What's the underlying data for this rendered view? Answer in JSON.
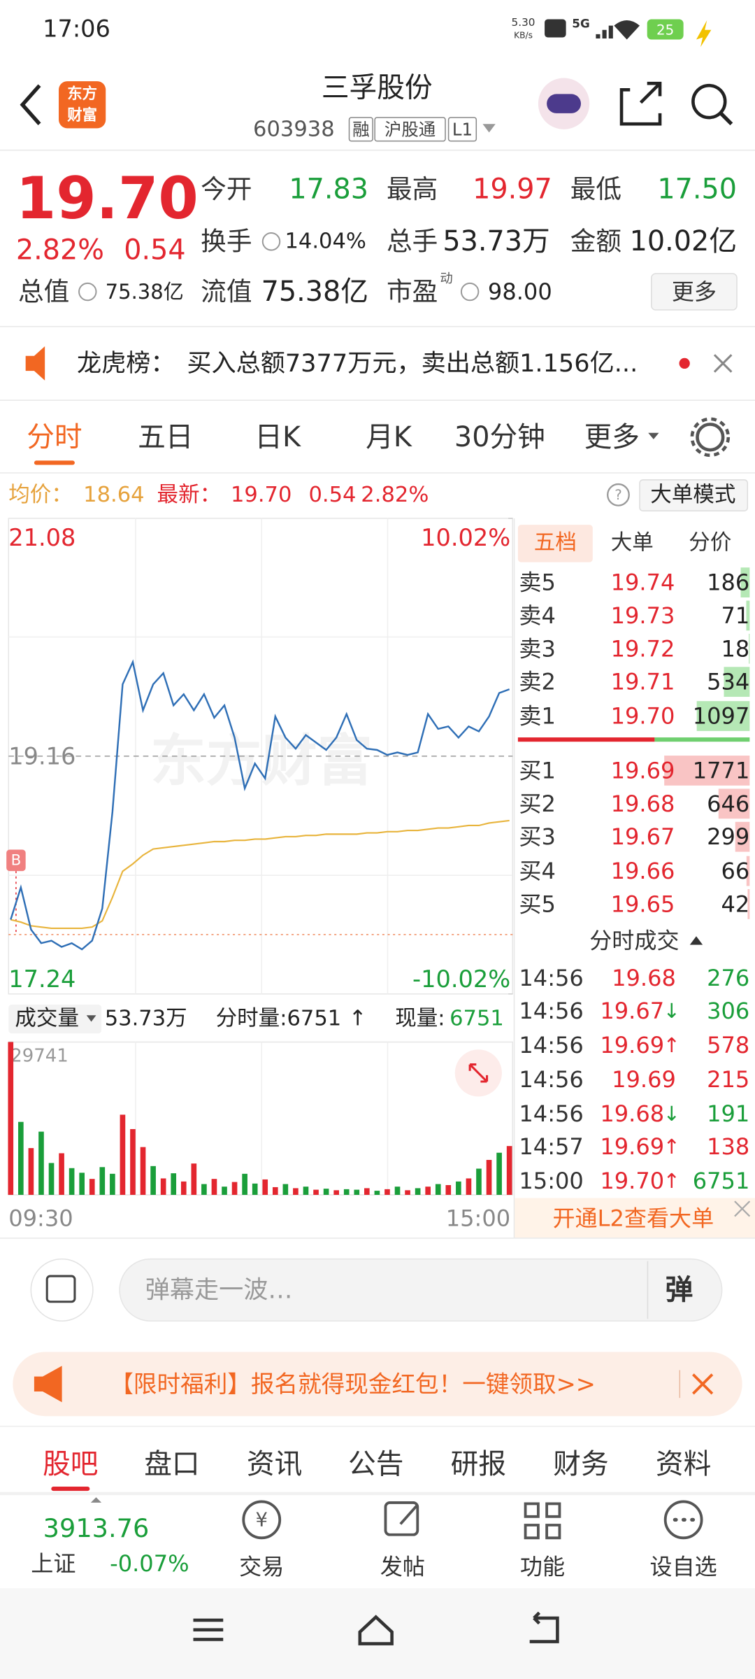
{
  "status_bar": {
    "time": "17:06",
    "net_speed": "5.30",
    "net_unit": "KB/s",
    "signal": "5G",
    "battery": "25"
  },
  "header": {
    "logo": [
      "东方",
      "财富"
    ],
    "title": "三孚股份",
    "code": "603938",
    "tags": [
      "融",
      "沪股通",
      "L1"
    ]
  },
  "quote": {
    "price": "19.70",
    "change_pct": "2.82%",
    "change": "0.54",
    "stats": [
      {
        "label": "今开",
        "value": "17.83",
        "color": "green"
      },
      {
        "label": "最高",
        "value": "19.97",
        "color": "red"
      },
      {
        "label": "最低",
        "value": "17.50",
        "color": "green"
      },
      {
        "label": "换手",
        "value": "14.04%"
      },
      {
        "label": "总手",
        "value": "53.73万"
      },
      {
        "label": "金额",
        "value": "10.02亿"
      },
      {
        "label": "总值",
        "value": "75.38亿"
      },
      {
        "label": "流值",
        "value": "75.38亿"
      },
      {
        "label": "市盈",
        "sup": "动",
        "value": "98.00"
      }
    ],
    "more": "更多"
  },
  "notice": {
    "label": "龙虎榜：",
    "text": "买入总额7377万元，卖出总额1.156亿..."
  },
  "tabs": {
    "items": [
      "分时",
      "五日",
      "日K",
      "月K",
      "30分钟",
      "更多"
    ],
    "active": 0
  },
  "summary": {
    "avg_label": "均价：",
    "avg": "18.64",
    "last_label": "最新：",
    "last": "19.70",
    "change": "0.54",
    "change_pct": "2.82%",
    "mode_button": "大单模式"
  },
  "price_chart": {
    "watermark": "东方财富",
    "buy_marker": "B",
    "ylim": [
      17.24,
      21.08
    ],
    "yticks": [
      21.08,
      19.16,
      17.24
    ],
    "y2lim": [
      -10.02,
      10.02
    ],
    "y2ticks": [
      {
        "value": 10.02,
        "label": "10.02%"
      },
      {
        "value": -10.02,
        "label": "-10.02%"
      }
    ],
    "price_color": "#2f6fb6",
    "avg_color": "#e8b43c",
    "price": [
      17.84,
      18.1,
      17.76,
      17.65,
      17.67,
      17.62,
      17.65,
      17.6,
      17.67,
      17.93,
      18.71,
      19.74,
      19.92,
      19.53,
      19.74,
      19.83,
      19.57,
      19.66,
      19.53,
      19.66,
      19.47,
      19.57,
      19.31,
      18.9,
      19.1,
      18.98,
      19.48,
      19.31,
      19.22,
      19.33,
      19.27,
      19.21,
      19.31,
      19.5,
      19.29,
      19.22,
      19.21,
      19.17,
      19.19,
      19.17,
      19.19,
      19.5,
      19.38,
      19.4,
      19.31,
      19.4,
      19.36,
      19.48,
      19.67,
      19.7
    ],
    "avg": [
      17.84,
      17.82,
      17.79,
      17.78,
      17.77,
      17.77,
      17.77,
      17.77,
      17.78,
      17.83,
      18.02,
      18.23,
      18.29,
      18.36,
      18.41,
      18.42,
      18.43,
      18.44,
      18.45,
      18.46,
      18.47,
      18.47,
      18.48,
      18.48,
      18.49,
      18.49,
      18.5,
      18.51,
      18.51,
      18.52,
      18.52,
      18.53,
      18.53,
      18.53,
      18.53,
      18.54,
      18.54,
      18.55,
      18.55,
      18.56,
      18.56,
      18.57,
      18.58,
      18.58,
      18.59,
      18.6,
      18.6,
      18.62,
      18.63,
      18.64
    ]
  },
  "volume_row": {
    "label": "成交量",
    "total": "53.73万",
    "tick_label": "分时量:6751",
    "tick_arrow": "↑",
    "now_label": "现量:",
    "now": "6751"
  },
  "volume_chart": {
    "ylim": [
      0,
      29741
    ],
    "yticks": [
      29741
    ],
    "time_labels": [
      "09:30",
      "15:00"
    ],
    "values": [
      29741,
      14200,
      9100,
      12300,
      6200,
      8100,
      5200,
      4300,
      3100,
      5400,
      4100,
      15600,
      12800,
      9300,
      5600,
      3200,
      4200,
      2600,
      6100,
      2100,
      3100,
      1600,
      2500,
      4100,
      2200,
      3000,
      1500,
      2100,
      1300,
      1600,
      1000,
      1200,
      900,
      1100,
      1000,
      1300,
      800,
      1100,
      1600,
      900,
      1300,
      1600,
      2100,
      1900,
      2600,
      3200,
      5100,
      6800,
      8200,
      9500
    ],
    "colors": [
      "red",
      "green",
      "red",
      "green",
      "green",
      "red",
      "green",
      "green",
      "red",
      "green",
      "green",
      "red",
      "red",
      "red",
      "green",
      "red",
      "green",
      "red",
      "red",
      "green",
      "red",
      "green",
      "red",
      "green",
      "green",
      "red",
      "red",
      "green",
      "red",
      "green",
      "red",
      "green",
      "red",
      "green",
      "green",
      "red",
      "green",
      "red",
      "green",
      "red",
      "green",
      "red",
      "green",
      "red",
      "green",
      "red",
      "green",
      "red",
      "green",
      "red"
    ]
  },
  "order_book": {
    "tabs": [
      "五档",
      "大单",
      "分价"
    ],
    "asks": [
      {
        "label": "卖5",
        "price": "19.74",
        "volume": 186
      },
      {
        "label": "卖4",
        "price": "19.73",
        "volume": 71
      },
      {
        "label": "卖3",
        "price": "19.72",
        "volume": 18
      },
      {
        "label": "卖2",
        "price": "19.71",
        "volume": 534
      },
      {
        "label": "卖1",
        "price": "19.70",
        "volume": 1097
      }
    ],
    "bids": [
      {
        "label": "买1",
        "price": "19.69",
        "volume": 1771
      },
      {
        "label": "买2",
        "price": "19.68",
        "volume": 646
      },
      {
        "label": "买3",
        "price": "19.67",
        "volume": 299
      },
      {
        "label": "买4",
        "price": "19.66",
        "volume": 66
      },
      {
        "label": "买5",
        "price": "19.65",
        "volume": 42
      }
    ],
    "trades_title": "分时成交",
    "trades": [
      {
        "time": "14:56",
        "price": "19.68",
        "volume": 276,
        "color": "green"
      },
      {
        "time": "14:56",
        "price": "19.67",
        "arrow": "↓",
        "arrow_color": "green",
        "volume": 306,
        "color": "green"
      },
      {
        "time": "14:56",
        "price": "19.69",
        "arrow": "↑",
        "arrow_color": "red",
        "volume": 578,
        "color": "red"
      },
      {
        "time": "14:56",
        "price": "19.69",
        "volume": 215,
        "color": "red"
      },
      {
        "time": "14:56",
        "price": "19.68",
        "arrow": "↓",
        "arrow_color": "green",
        "volume": 191,
        "color": "green"
      },
      {
        "time": "14:57",
        "price": "19.69",
        "arrow": "↑",
        "arrow_color": "red",
        "volume": 138,
        "color": "red"
      },
      {
        "time": "15:00",
        "price": "19.70",
        "arrow": "↑",
        "arrow_color": "red",
        "volume": 6751,
        "color": "green"
      }
    ],
    "l2_link": "开通L2查看大单"
  },
  "comment": {
    "placeholder": "弹幕走一波…",
    "button": "弹"
  },
  "promo": {
    "text": "【限时福利】报名就得现金红包！一键领取>>"
  },
  "bottom_tabs": {
    "items": [
      "股吧",
      "盘口",
      "资讯",
      "公告",
      "研报",
      "财务",
      "资料"
    ],
    "active": 0
  },
  "bottom_nav": {
    "index_value": "3913.76",
    "index_name": "上证",
    "index_change": "-0.07%",
    "items": [
      "交易",
      "发帖",
      "功能",
      "设自选"
    ]
  }
}
